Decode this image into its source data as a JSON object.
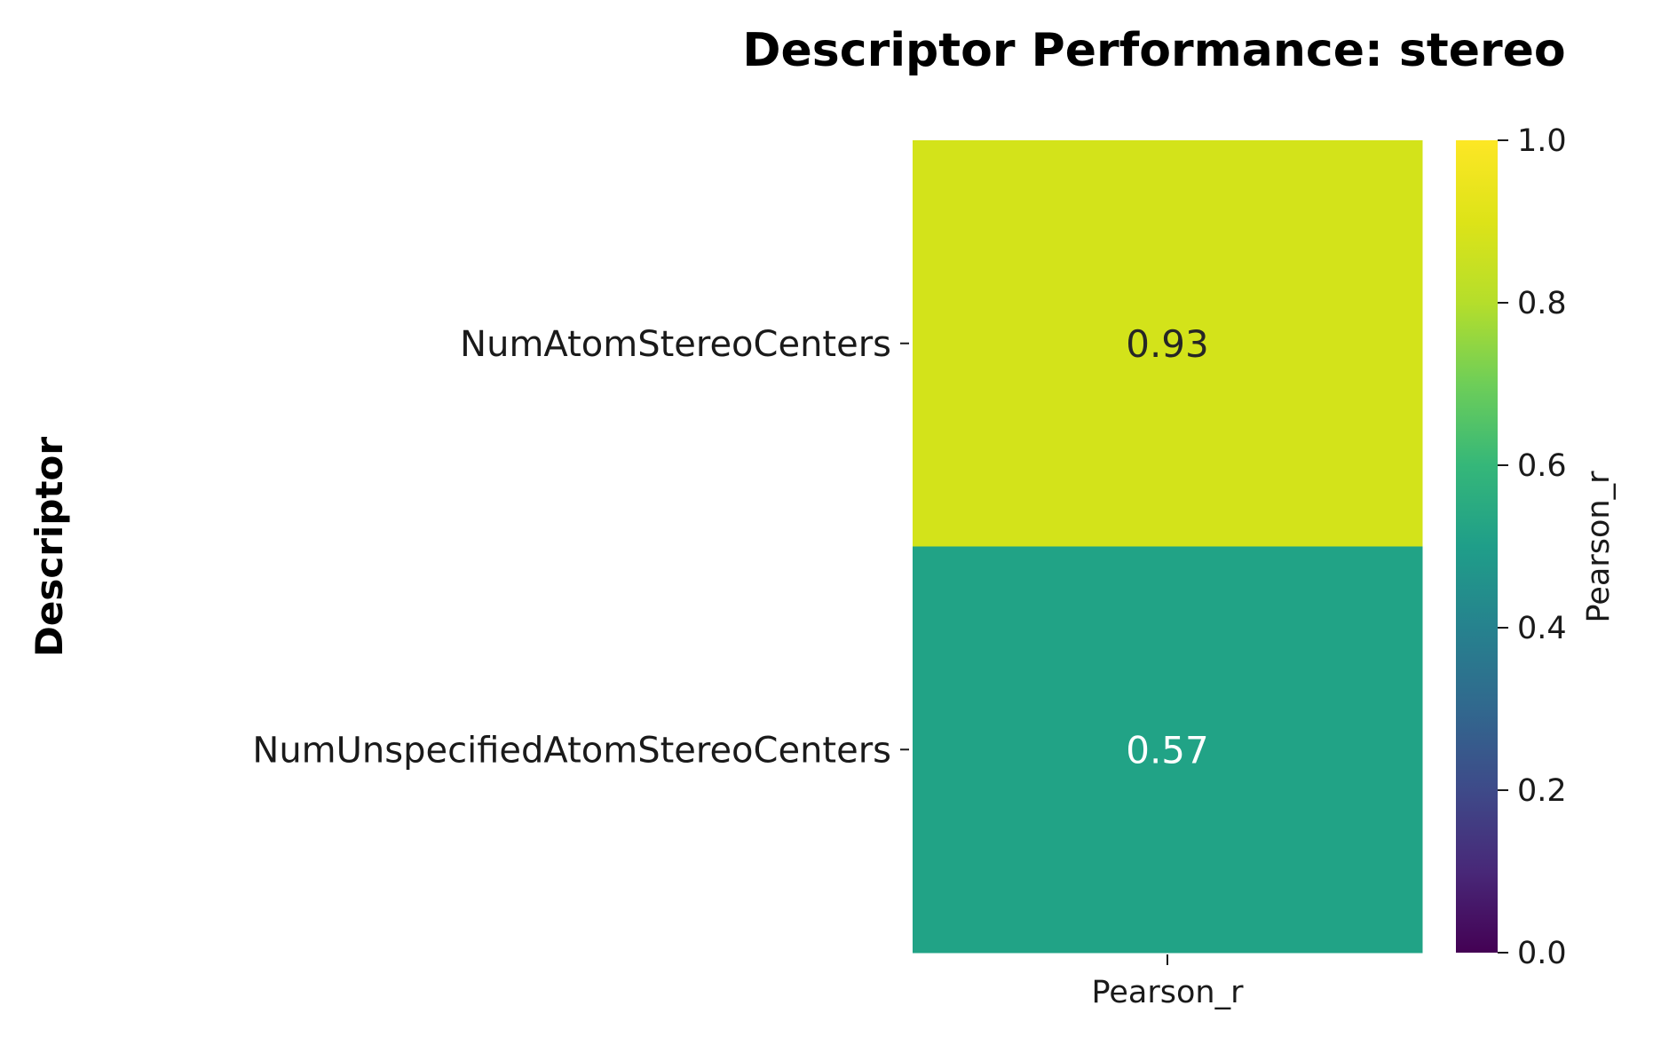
{
  "chart_data": {
    "type": "heatmap",
    "title": "Descriptor Performance: stereo",
    "ylabel": "Descriptor",
    "xlabel": "",
    "columns": [
      "Pearson_r"
    ],
    "rows": [
      "NumAtomStereoCenters",
      "NumUnspecifiedAtomStereoCenters"
    ],
    "values": [
      [
        0.93
      ],
      [
        0.57
      ]
    ],
    "annotations": [
      [
        "0.93"
      ],
      [
        "0.57"
      ]
    ],
    "colormap": "viridis",
    "colorbar": {
      "label": "Pearson_r",
      "range": [
        0.0,
        1.0
      ],
      "ticks": [
        "0.0",
        "0.2",
        "0.4",
        "0.6",
        "0.8",
        "1.0"
      ]
    },
    "cell_colors": [
      "#d3e31a",
      "#21a386"
    ],
    "annotation_colors": [
      "#262626",
      "#ffffff"
    ]
  }
}
